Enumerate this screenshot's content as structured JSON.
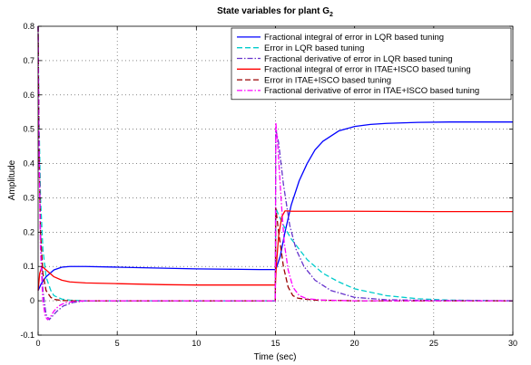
{
  "chart_data": {
    "type": "line",
    "title_main": "State variables for plant G",
    "title_sub": "2",
    "xlabel": "Time (sec)",
    "ylabel": "Amplitude",
    "xlim": [
      0,
      30
    ],
    "ylim": [
      -0.1,
      0.8
    ],
    "xticks": [
      0,
      5,
      10,
      15,
      20,
      25,
      30
    ],
    "yticks": [
      -0.1,
      0,
      0.1,
      0.2,
      0.3,
      0.4,
      0.5,
      0.6,
      0.7,
      0.8
    ],
    "grid": true,
    "legend_position": "top-right",
    "series": [
      {
        "name": "Fractional integral of error in LQR based tuning",
        "color": "#0000ff",
        "dash": "solid",
        "x": [
          0,
          0.2,
          0.5,
          1,
          1.5,
          2,
          3,
          5,
          8,
          10,
          12,
          14,
          14.99,
          15.05,
          15.3,
          15.6,
          16,
          16.5,
          17,
          17.5,
          18,
          19,
          20,
          21,
          22,
          24,
          26,
          28,
          30
        ],
        "y": [
          0.03,
          0.05,
          0.07,
          0.09,
          0.098,
          0.1,
          0.1,
          0.098,
          0.095,
          0.093,
          0.092,
          0.091,
          0.091,
          0.095,
          0.13,
          0.2,
          0.28,
          0.35,
          0.4,
          0.44,
          0.465,
          0.495,
          0.508,
          0.514,
          0.517,
          0.52,
          0.521,
          0.521,
          0.521
        ]
      },
      {
        "name": "Error in LQR based tuning",
        "color": "#00cccc",
        "dash": "6 3",
        "x": [
          0,
          0.05,
          0.15,
          0.3,
          0.5,
          0.8,
          1,
          1.5,
          2,
          3,
          5,
          10,
          14.99,
          15.02,
          15.2,
          15.5,
          16,
          16.5,
          17,
          18,
          19,
          20,
          22,
          24,
          26,
          30
        ],
        "y": [
          0.8,
          0.55,
          0.3,
          0.15,
          0.07,
          0.03,
          0.015,
          0.005,
          0.002,
          0.0,
          0.0,
          0.0,
          0.0,
          0.27,
          0.25,
          0.22,
          0.18,
          0.15,
          0.12,
          0.08,
          0.055,
          0.035,
          0.015,
          0.006,
          0.002,
          0.0
        ]
      },
      {
        "name": "Fractional derivative of error in LQR based tuning",
        "color": "#6633cc",
        "dash": "6 2 1.5 2",
        "x": [
          0,
          0.05,
          0.15,
          0.3,
          0.5,
          0.7,
          0.9,
          1.2,
          1.6,
          2.2,
          3,
          5,
          14.99,
          15.02,
          15.2,
          15.5,
          15.9,
          16.3,
          16.8,
          17.5,
          18.5,
          20,
          22,
          25,
          30
        ],
        "y": [
          0.8,
          0.5,
          0.2,
          0.03,
          -0.04,
          -0.055,
          -0.045,
          -0.03,
          -0.015,
          -0.005,
          0.0,
          0.0,
          0.0,
          0.5,
          0.46,
          0.34,
          0.22,
          0.15,
          0.1,
          0.06,
          0.03,
          0.01,
          0.003,
          0.001,
          0.0
        ]
      },
      {
        "name": "Fractional integral of error in ITAE+ISCO based tuning",
        "color": "#ff0000",
        "dash": "solid",
        "x": [
          0,
          0.1,
          0.25,
          0.5,
          1,
          1.5,
          2,
          3,
          5,
          8,
          10,
          12,
          14.99,
          15.05,
          15.2,
          15.4,
          15.6,
          15.8,
          16,
          17,
          20,
          25,
          30
        ],
        "y": [
          0.03,
          0.08,
          0.1,
          0.09,
          0.07,
          0.06,
          0.055,
          0.052,
          0.05,
          0.047,
          0.046,
          0.046,
          0.046,
          0.1,
          0.19,
          0.245,
          0.262,
          0.262,
          0.261,
          0.261,
          0.261,
          0.26,
          0.26
        ]
      },
      {
        "name": "Error in ITAE+ISCO based tuning",
        "color": "#990000",
        "dash": "6 3",
        "x": [
          0,
          0.05,
          0.15,
          0.3,
          0.5,
          0.8,
          1,
          1.5,
          2,
          3,
          10,
          14.99,
          15.02,
          15.2,
          15.5,
          15.8,
          16.1,
          16.4,
          16.8,
          17.5,
          20,
          30
        ],
        "y": [
          0.8,
          0.45,
          0.2,
          0.08,
          0.03,
          0.01,
          0.004,
          0.001,
          0.0,
          0.0,
          0.0,
          0.0,
          0.27,
          0.2,
          0.1,
          0.04,
          0.015,
          0.008,
          0.005,
          0.002,
          0.0,
          0.0
        ]
      },
      {
        "name": "Fractional derivative of error in ITAE+ISCO based tuning",
        "color": "#ff00ff",
        "dash": "6 2 1.5 2",
        "x": [
          0,
          0.05,
          0.15,
          0.3,
          0.45,
          0.6,
          0.8,
          1.0,
          1.3,
          1.7,
          2.3,
          3,
          5,
          14.99,
          15.02,
          15.15,
          15.35,
          15.55,
          15.8,
          16.1,
          16.5,
          17,
          18,
          20,
          30
        ],
        "y": [
          0.8,
          0.45,
          0.15,
          0.0,
          -0.045,
          -0.055,
          -0.045,
          -0.03,
          -0.015,
          -0.006,
          -0.002,
          0.0,
          0.0,
          0.0,
          0.52,
          0.45,
          0.3,
          0.17,
          0.09,
          0.04,
          0.015,
          0.006,
          0.002,
          0.0,
          0.0
        ]
      }
    ]
  }
}
